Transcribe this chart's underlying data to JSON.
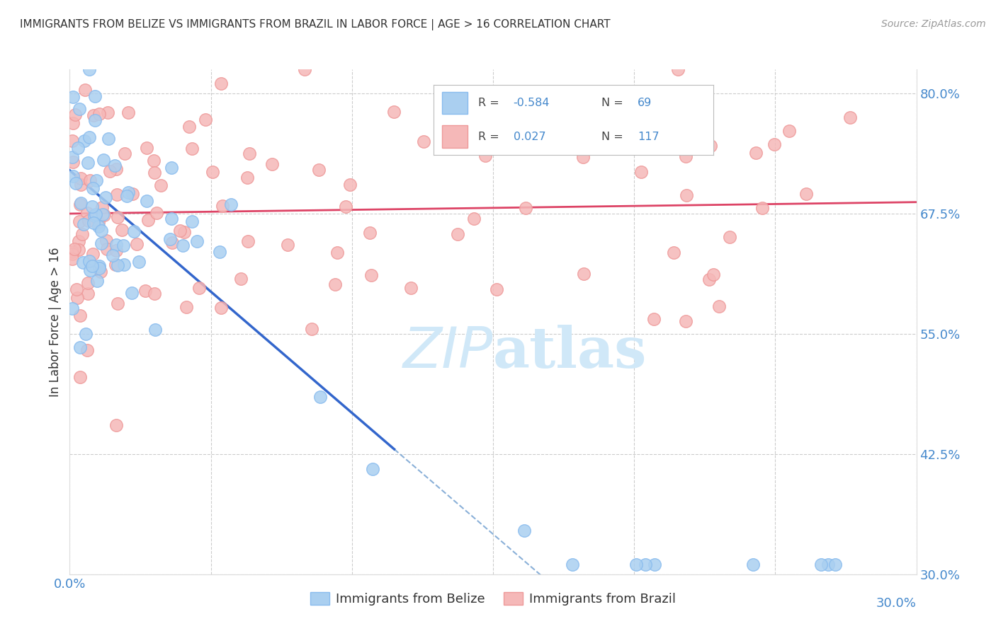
{
  "title": "IMMIGRANTS FROM BELIZE VS IMMIGRANTS FROM BRAZIL IN LABOR FORCE | AGE > 16 CORRELATION CHART",
  "source": "Source: ZipAtlas.com",
  "xlabel": "",
  "ylabel": "In Labor Force | Age > 16",
  "x_min": 0.0,
  "x_max": 0.3,
  "y_min": 0.3,
  "y_max": 0.825,
  "x_ticks": [
    0.0,
    0.05,
    0.1,
    0.15,
    0.2,
    0.25,
    0.3
  ],
  "y_ticks_right": [
    0.8,
    0.675,
    0.55,
    0.425,
    0.3
  ],
  "y_tick_labels_right": [
    "80.0%",
    "67.5%",
    "55.0%",
    "42.5%",
    "30.0%"
  ],
  "belize_color": "#aacff0",
  "brazil_color": "#f5b8b8",
  "belize_edge": "#88bbee",
  "brazil_edge": "#ee9999",
  "belize_line_color": "#3366cc",
  "brazil_line_color": "#dd4466",
  "belize_R": -0.584,
  "belize_N": 69,
  "brazil_R": 0.027,
  "brazil_N": 117,
  "legend_label_belize": "Immigrants from Belize",
  "legend_label_brazil": "Immigrants from Brazil",
  "background_color": "#ffffff",
  "grid_color": "#cccccc",
  "title_color": "#333333",
  "axis_label_color": "#333333",
  "right_axis_color": "#4488cc",
  "watermark_color": "#d0e8f8",
  "belize_line_end_x": 0.115,
  "brazil_line_intercept": 0.675,
  "brazil_line_slope": 0.04
}
